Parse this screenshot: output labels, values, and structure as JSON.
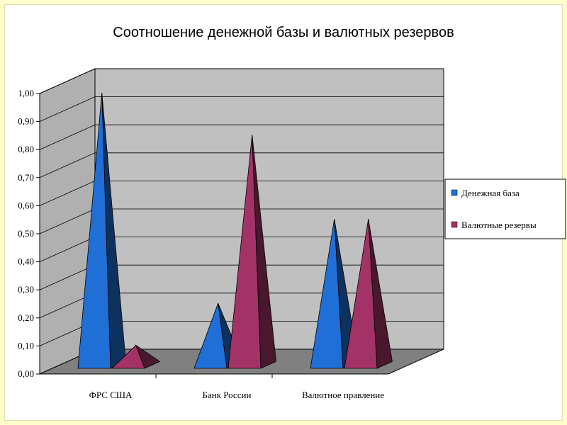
{
  "chart_data": {
    "type": "bar",
    "shape": "pyramid-3d",
    "title": "Соотношение денежной базы и валютных резервов",
    "categories": [
      "ФРС США",
      "Банк России",
      "Валютное правление"
    ],
    "series": [
      {
        "name": "Денежная база",
        "values": [
          0.97,
          0.22,
          0.52
        ],
        "color": "#1f6fd6"
      },
      {
        "name": "Валютные резервы",
        "values": [
          0.07,
          0.82,
          0.52
        ],
        "color": "#a33366"
      }
    ],
    "ylim": [
      0,
      1.0
    ],
    "yticks": [
      "0,00",
      "0,10",
      "0,20",
      "0,30",
      "0,40",
      "0,50",
      "0,60",
      "0,70",
      "0,80",
      "0,90",
      "1,00"
    ],
    "grid": true,
    "legend_position": "right"
  },
  "colors": {
    "page_background": "#ffffcc",
    "wall": "#c0c0c0",
    "side_wall": "#b0b0b0",
    "floor": "#808080"
  }
}
